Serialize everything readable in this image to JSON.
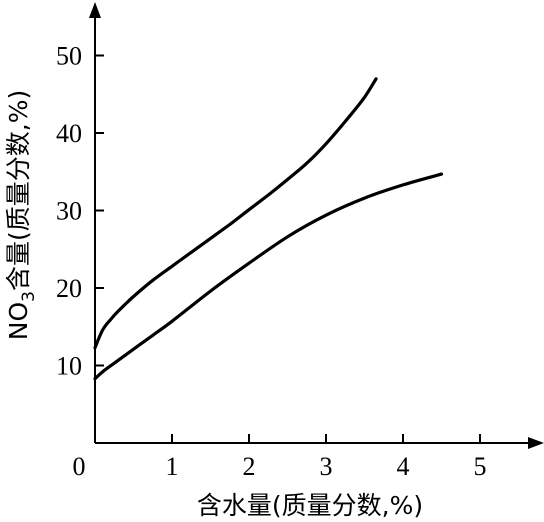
{
  "chart_data": {
    "type": "line",
    "title": "",
    "xlabel": "含水量(质量分数,%)",
    "ylabel_main": "NO",
    "ylabel_sub": "3",
    "ylabel_rest": "含量(质量分数,%)",
    "xlim": [
      0,
      5.5
    ],
    "ylim": [
      0,
      56
    ],
    "origin_label": "0",
    "x_ticks": [
      1,
      2,
      3,
      4,
      5
    ],
    "x_tick_labels": [
      "1",
      "2",
      "3",
      "4",
      "5"
    ],
    "y_ticks": [
      10,
      20,
      30,
      40,
      50
    ],
    "y_tick_labels": [
      "10",
      "20",
      "30",
      "40",
      "50"
    ],
    "grid": false,
    "series": [
      {
        "x": [
          0.0,
          0.1,
          0.2,
          0.3,
          0.5,
          0.75,
          1.0,
          1.25,
          1.5,
          1.75,
          2.0,
          2.25,
          2.5,
          2.75,
          3.0,
          3.25,
          3.5,
          3.65
        ],
        "y": [
          12.3,
          14.6,
          15.9,
          17.0,
          18.9,
          21.0,
          22.8,
          24.6,
          26.4,
          28.2,
          30.1,
          32.0,
          34.0,
          36.1,
          38.6,
          41.5,
          44.6,
          47.0
        ]
      },
      {
        "x": [
          0.0,
          0.1,
          0.25,
          0.5,
          0.75,
          1.0,
          1.5,
          2.0,
          2.5,
          3.0,
          3.5,
          4.0,
          4.5
        ],
        "y": [
          8.3,
          9.2,
          10.3,
          12.1,
          13.9,
          15.7,
          19.6,
          23.2,
          26.6,
          29.4,
          31.6,
          33.3,
          34.7
        ]
      }
    ]
  }
}
